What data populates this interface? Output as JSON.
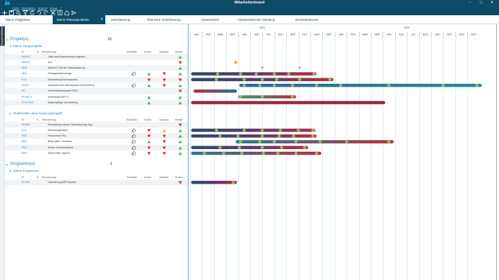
{
  "window": {
    "title": "Mitarbeiterboard"
  },
  "menu": [
    "Datei",
    "Bearbeiten",
    "Ansicht",
    "Extras",
    "?"
  ],
  "toolbar_icons": [
    "add-icon",
    "save-icon",
    "search-icon",
    "filter-icon",
    "refresh-icon",
    "undo-icon",
    "redo-icon",
    "cut-icon",
    "layout-icon",
    "home-icon",
    "send-icon"
  ],
  "tabs": [
    {
      "label": "Meine Tätigkeiten",
      "active": false
    },
    {
      "label": "Meine Planungsobjekte",
      "active": true
    },
    {
      "label": "Zeiterfassung",
      "active": false
    },
    {
      "label": "Übersicht: Zeiterfassung",
      "active": false
    },
    {
      "label": "Abwesenheit",
      "active": false
    },
    {
      "label": "Abwesenheit der Abteilung",
      "active": false
    },
    {
      "label": "Wochenkalender",
      "active": false
    }
  ],
  "side_label": "Benutzerdefiniert",
  "columns": {
    "id": "ID",
    "desc": "Bezeichnung",
    "estimate": "Einschätz",
    "cost": "Kosten",
    "effort": "Aufwand",
    "dates": "Termine"
  },
  "projects": {
    "title": "Projekt(e)",
    "count": "15",
    "groups": [
      {
        "label": "Meine Hauptprojekte",
        "rows": [
          {
            "id": "000000",
            "name": "-Bitte eine Bezeichnung eingeben",
            "thumb": "",
            "cost": "",
            "effort": "",
            "dates": "up"
          },
          {
            "id": "000002",
            "name": "test",
            "thumb": "",
            "cost": "",
            "effort": "",
            "dates": "down"
          },
          {
            "id": "0815",
            "name": "Neues IT-Tool für Urlaubsplanung",
            "thumb": "",
            "cost": "",
            "effort": "",
            "dates": "up"
          },
          {
            "id": "4611",
            "name": "Schlagwerksmontage",
            "thumb": "up",
            "cost": "up",
            "effort": "down",
            "dates": "up"
          },
          {
            "id": "6711",
            "name": "Entwicklung Bohrmaschine",
            "thumb": "",
            "cost": "down",
            "effort": "down",
            "dates": "down"
          },
          {
            "id": "AT314",
            "name": "Automatisches Notrufsystem (Automotive)",
            "thumb": "up",
            "cost": "up",
            "effort": "down",
            "dates": "up"
          },
          {
            "id": "DK",
            "name": "Gemeinkostenprojekt 2019",
            "thumb": "",
            "cost": "",
            "effort": "",
            "dates": "down"
          },
          {
            "id": "P3-882-3",
            "name": "Anbindung SAP-FI",
            "thumb": "",
            "cost": "up",
            "effort": "",
            "dates": "up"
          },
          {
            "id": "S+W 2063",
            "name": "Systempflege und Wartung",
            "thumb": "",
            "cost": "up",
            "effort": "",
            "dates": "up"
          }
        ]
      },
      {
        "label": "Stakeholder ohne Änderungszugriff",
        "rows": [
          {
            "id": "000000",
            "name": "Entwicklung interner Zeiterfassungs-App",
            "thumb": "",
            "cost": "",
            "effort": "",
            "dates": "down"
          },
          {
            "id": "4711",
            "name": "Elektronikgerätein",
            "thumb": "up",
            "cost": "down",
            "effort": "warn",
            "dates": "up"
          },
          {
            "id": "5000",
            "name": "Frassemum FS1",
            "thumb": "up",
            "cost": "down",
            "effort": "down",
            "dates": "up"
          },
          {
            "id": "6812",
            "name": "Bauprojekt - Hochbau",
            "thumb": "up",
            "cost": "up",
            "effort": "down",
            "dates": "up"
          },
          {
            "id": "7000",
            "name": "Neues Vertriebssystem",
            "thumb": "up",
            "cost": "down",
            "effort": "down",
            "dates": "up"
          },
          {
            "id": "8000",
            "name": "Neues BDE-System",
            "thumb": "up",
            "cost": "down",
            "effort": "down",
            "dates": "up"
          }
        ]
      }
    ]
  },
  "programs": {
    "title": "Programm(e)",
    "count": "1",
    "groups": [
      {
        "label": "Meine Programme",
        "rows": [
          {
            "id": "P1-346",
            "name": "Optimierung ERP-System",
            "thumb": "",
            "cost": "",
            "effort": "",
            "dates": "down"
          }
        ]
      }
    ]
  },
  "timeline": {
    "years": [
      "2021",
      "2022"
    ],
    "months": [
      "JAN",
      "FEB",
      "MAR",
      "APR",
      "MAI",
      "JUN",
      "JUL",
      "AUG",
      "SEP",
      "OKT",
      "NOV",
      "DEZ",
      "JAN",
      "FEB",
      "MÄR",
      "APR",
      "MAI",
      "JUN",
      "JUL",
      "AUG",
      "SEP",
      "OKT",
      "NOV",
      "DEZ"
    ]
  },
  "colors": {
    "accent": "#0d4b68",
    "link": "#1d7fb8",
    "green": "#3cb043",
    "red": "#d22a1e",
    "orange": "#f5a623",
    "bar_blue": "#2a6a8e",
    "bar_red": "#b23040",
    "milestone": "#8bc34a"
  }
}
